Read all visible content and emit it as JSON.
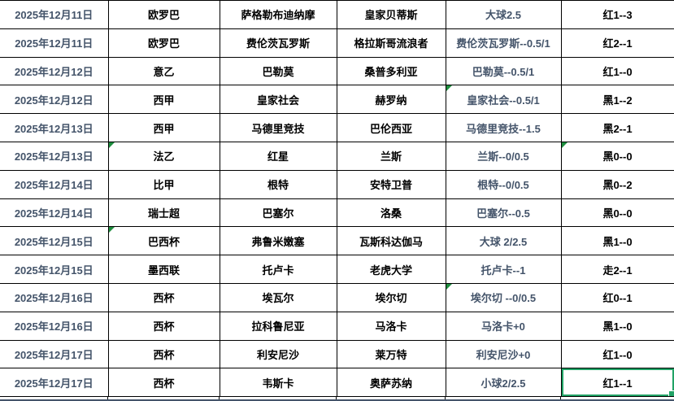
{
  "colors": {
    "date_text": "#44546A",
    "team_text": "#000000",
    "handicap_text": "#44546A",
    "result_text": "#000000",
    "grid_border": "#000000",
    "selection_green": "#21A366",
    "flag_triangle_green": "#1E8E3E",
    "bottom_rule": "#44546A"
  },
  "table": {
    "columns": [
      "date",
      "league",
      "home",
      "away",
      "handicap",
      "result"
    ],
    "rows": [
      {
        "date": "2025年12月11日",
        "league": "欧罗巴",
        "home": "萨格勒布迪纳摩",
        "away": "皇家贝蒂斯",
        "handicap": "大球2.5",
        "result": "红1--3"
      },
      {
        "date": "2025年12月11日",
        "league": "欧罗巴",
        "home": "费伦茨瓦罗斯",
        "away": "格拉斯哥流浪者",
        "handicap": "费伦茨瓦罗斯--0.5/1",
        "result": "红2--1"
      },
      {
        "date": "2025年12月12日",
        "league": "意乙",
        "home": "巴勒莫",
        "away": "桑普多利亚",
        "handicap": "巴勒莫--0.5/1",
        "result": "红1--0"
      },
      {
        "date": "2025年12月12日",
        "league": "西甲",
        "home": "皇家社会",
        "away": "赫罗纳",
        "handicap": "皇家社会--0.5/1",
        "result": "黑1--2"
      },
      {
        "date": "2025年12月13日",
        "league": "西甲",
        "home": "马德里竞技",
        "away": "巴伦西亚",
        "handicap": "马德里竞技--1.5",
        "result": "黑2--1"
      },
      {
        "date": "2025年12月13日",
        "league": "法乙",
        "home": "红星",
        "away": "兰斯",
        "handicap": "兰斯--0/0.5",
        "result": "黑0--0"
      },
      {
        "date": "2025年12月14日",
        "league": "比甲",
        "home": "根特",
        "away": "安特卫普",
        "handicap": "根特--0/0.5",
        "result": "黑0--2"
      },
      {
        "date": "2025年12月14日",
        "league": "瑞士超",
        "home": "巴塞尔",
        "away": "洛桑",
        "handicap": "巴塞尔--0.5",
        "result": "黑0--0"
      },
      {
        "date": "2025年12月15日",
        "league": "巴西杯",
        "home": "弗鲁米嫩塞",
        "away": "瓦斯科达伽马",
        "handicap": "大球 2/2.5",
        "result": "黑1--0"
      },
      {
        "date": "2025年12月15日",
        "league": "墨西联",
        "home": "托卢卡",
        "away": "老虎大学",
        "handicap": "托卢卡--1",
        "result": "走2--1"
      },
      {
        "date": "2025年12月16日",
        "league": "西杯",
        "home": "埃瓦尔",
        "away": "埃尔切",
        "handicap": "埃尔切 --0/0.5",
        "result": "红0--1"
      },
      {
        "date": "2025年12月16日",
        "league": "西杯",
        "home": "拉科鲁尼亚",
        "away": "马洛卡",
        "handicap": "马洛卡+0",
        "result": "黑1--0"
      },
      {
        "date": "2025年12月17日",
        "league": "西杯",
        "home": "利安尼沙",
        "away": "莱万特",
        "handicap": "利安尼沙+0",
        "result": "红1--0"
      },
      {
        "date": "2025年12月17日",
        "league": "西杯",
        "home": "韦斯卡",
        "away": "奥萨苏纳",
        "handicap": "小球2/2.5",
        "result": "红1--1"
      }
    ]
  },
  "flags": {
    "triangle_cells": [
      [
        3,
        "handicap"
      ],
      [
        5,
        "league"
      ],
      [
        5,
        "result"
      ],
      [
        8,
        "league"
      ],
      [
        10,
        "handicap"
      ]
    ]
  },
  "selection": {
    "row_index": 13,
    "column": "result"
  }
}
